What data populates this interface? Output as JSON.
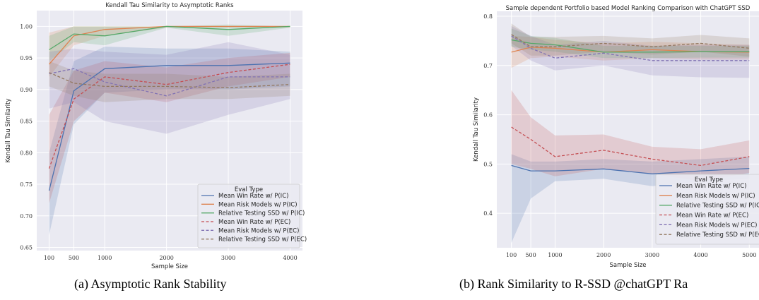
{
  "captions": {
    "a": "(a) Asymptotic Rank Stability",
    "b": "(b) Rank Similarity to R-SSD @chatGPT Ra"
  },
  "colors": {
    "blue": "#4c72b0",
    "orange": "#dd8452",
    "green": "#55a868",
    "red": "#c44e52",
    "purple": "#8172b3",
    "brown": "#937860",
    "plot_bg": "#eaeaf2",
    "grid": "#ffffff"
  },
  "chart_data": [
    {
      "type": "line",
      "title": "Kendall Tau Similarity to Asymptotic Ranks",
      "xlabel": "Sample Size",
      "ylabel": "Kendall Tau Similarity",
      "x": [
        100,
        500,
        1000,
        2000,
        3000,
        4000
      ],
      "xticks": [
        100,
        500,
        1000,
        2000,
        3000,
        4000
      ],
      "xlim": [
        -100,
        4200
      ],
      "yticks": [
        0.65,
        0.7,
        0.75,
        0.8,
        0.85,
        0.9,
        0.95,
        1.0
      ],
      "ylim": [
        0.645,
        1.025
      ],
      "grid": true,
      "legend": {
        "title": "Eval Type",
        "placement": "bottom-right"
      },
      "series": [
        {
          "name": "Mean Win Rate w/ P(IC)",
          "color": "blue",
          "dash": false,
          "values": [
            0.74,
            0.898,
            0.933,
            0.938,
            0.938,
            0.942
          ],
          "lower": [
            0.67,
            0.845,
            0.895,
            0.9,
            0.9,
            0.905
          ],
          "upper": [
            0.8,
            0.945,
            0.968,
            0.965,
            0.965,
            0.96
          ]
        },
        {
          "name": "Mean Risk Models w/ P(IC)",
          "color": "orange",
          "dash": false,
          "values": [
            0.94,
            0.985,
            0.995,
            1.0,
            1.0,
            1.0
          ],
          "lower": [
            0.92,
            0.97,
            0.985,
            0.998,
            0.998,
            0.998
          ],
          "upper": [
            0.99,
            1.0,
            1.0,
            1.0,
            1.0,
            1.0
          ]
        },
        {
          "name": "Relative Testing SSD w/ P(IC)",
          "color": "green",
          "dash": false,
          "values": [
            0.963,
            0.988,
            0.985,
            1.0,
            0.995,
            1.0
          ],
          "lower": [
            0.945,
            0.975,
            0.97,
            0.998,
            0.985,
            0.998
          ],
          "upper": [
            0.985,
            1.0,
            1.0,
            1.0,
            1.003,
            1.0
          ]
        },
        {
          "name": "Mean Win Rate w/ P(EC)",
          "color": "red",
          "dash": true,
          "values": [
            0.775,
            0.885,
            0.92,
            0.908,
            0.927,
            0.94
          ],
          "lower": [
            0.72,
            0.85,
            0.895,
            0.88,
            0.905,
            0.92
          ],
          "upper": [
            0.86,
            0.93,
            0.945,
            0.935,
            0.95,
            0.958
          ]
        },
        {
          "name": "Mean Risk Models w/ P(EC)",
          "color": "purple",
          "dash": true,
          "values": [
            0.925,
            0.933,
            0.912,
            0.89,
            0.92,
            0.92
          ],
          "lower": [
            0.87,
            0.88,
            0.85,
            0.83,
            0.86,
            0.885
          ],
          "upper": [
            0.96,
            0.965,
            0.96,
            0.955,
            0.975,
            0.955
          ]
        },
        {
          "name": "Relative Testing SSD w/ P(EC)",
          "color": "brown",
          "dash": true,
          "values": [
            0.927,
            0.91,
            0.905,
            0.905,
            0.903,
            0.908
          ],
          "lower": [
            0.905,
            0.89,
            0.88,
            0.885,
            0.885,
            0.89
          ],
          "upper": [
            0.945,
            0.93,
            0.925,
            0.925,
            0.92,
            0.925
          ]
        }
      ]
    },
    {
      "type": "line",
      "title": "Sample dependent Portfolio based Model Ranking Comparison with ChatGPT SSD",
      "xlabel": "Sample Size",
      "ylabel": "Kendall Tau Similarity",
      "x": [
        100,
        500,
        1000,
        2000,
        3000,
        4000,
        5000
      ],
      "xticks": [
        100,
        500,
        1000,
        2000,
        3000,
        4000,
        5000
      ],
      "xlim": [
        -200,
        5200
      ],
      "yticks": [
        0.4,
        0.5,
        0.6,
        0.7,
        0.8
      ],
      "ylim": [
        0.33,
        0.81
      ],
      "grid": true,
      "legend": {
        "title": "Eval Type",
        "placement": "bottom-right"
      },
      "series": [
        {
          "name": "Mean Win Rate w/ P(IC)",
          "color": "blue",
          "dash": false,
          "values": [
            0.497,
            0.486,
            0.486,
            0.49,
            0.48,
            0.486,
            0.491
          ],
          "lower": [
            0.34,
            0.43,
            0.465,
            0.47,
            0.455,
            0.465,
            0.47
          ],
          "upper": [
            0.52,
            0.505,
            0.505,
            0.51,
            0.505,
            0.51,
            0.515
          ]
        },
        {
          "name": "Mean Risk Models w/ P(IC)",
          "color": "orange",
          "dash": false,
          "values": [
            0.727,
            0.737,
            0.735,
            0.727,
            0.732,
            0.728,
            0.727
          ],
          "lower": [
            0.695,
            0.715,
            0.718,
            0.71,
            0.715,
            0.712,
            0.712
          ],
          "upper": [
            0.76,
            0.758,
            0.752,
            0.745,
            0.748,
            0.745,
            0.742
          ]
        },
        {
          "name": "Relative Testing SSD w/ P(IC)",
          "color": "green",
          "dash": false,
          "values": [
            0.752,
            0.745,
            0.742,
            0.727,
            0.727,
            0.728,
            0.728
          ],
          "lower": [
            0.738,
            0.732,
            0.728,
            0.715,
            0.715,
            0.716,
            0.716
          ],
          "upper": [
            0.775,
            0.76,
            0.756,
            0.74,
            0.74,
            0.74,
            0.74
          ]
        },
        {
          "name": "Mean Win Rate w/ P(EC)",
          "color": "red",
          "dash": true,
          "values": [
            0.575,
            0.55,
            0.515,
            0.528,
            0.51,
            0.497,
            0.515
          ],
          "lower": [
            0.5,
            0.49,
            0.475,
            0.49,
            0.48,
            0.465,
            0.482
          ],
          "upper": [
            0.65,
            0.595,
            0.558,
            0.56,
            0.535,
            0.53,
            0.548
          ]
        },
        {
          "name": "Mean Risk Models w/ P(EC)",
          "color": "purple",
          "dash": true,
          "values": [
            0.76,
            0.735,
            0.715,
            0.725,
            0.71,
            0.71,
            0.71
          ],
          "lower": [
            0.74,
            0.71,
            0.69,
            0.7,
            0.68,
            0.676,
            0.675
          ],
          "upper": [
            0.78,
            0.76,
            0.742,
            0.75,
            0.74,
            0.742,
            0.742
          ]
        },
        {
          "name": "Relative Testing SSD w/ P(EC)",
          "color": "brown",
          "dash": true,
          "values": [
            0.763,
            0.738,
            0.738,
            0.745,
            0.738,
            0.745,
            0.735
          ],
          "lower": [
            0.745,
            0.72,
            0.72,
            0.728,
            0.722,
            0.728,
            0.718
          ],
          "upper": [
            0.785,
            0.758,
            0.758,
            0.76,
            0.755,
            0.762,
            0.755
          ]
        }
      ]
    }
  ]
}
